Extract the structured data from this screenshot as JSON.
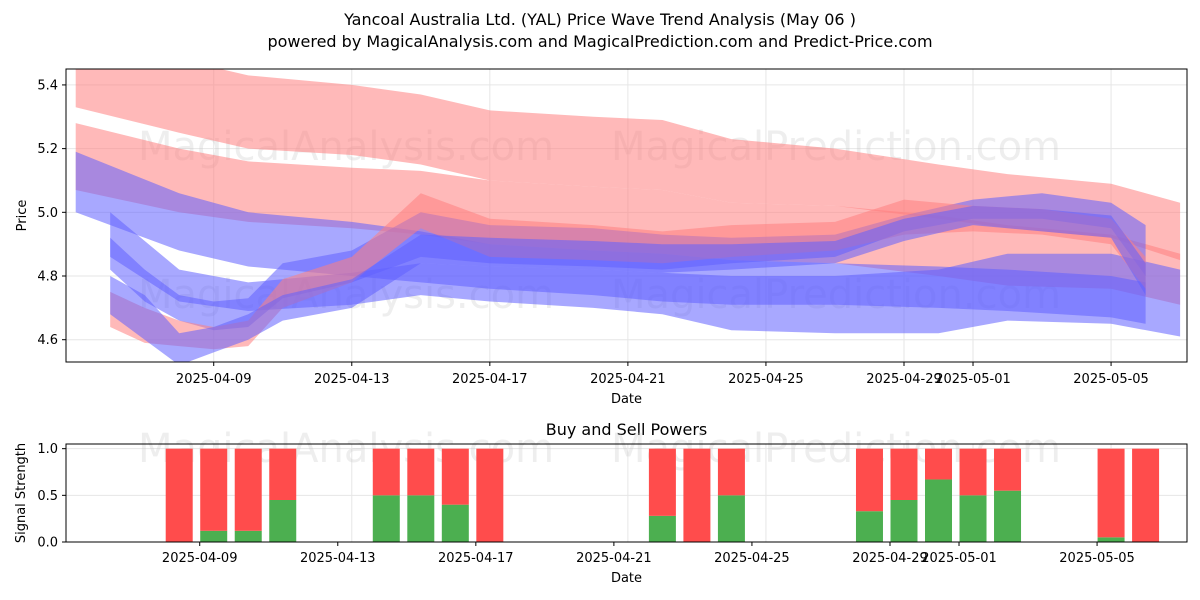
{
  "header": {
    "title": "Yancoal Australia Ltd. (YAL) Price Wave Trend Analysis (May 06 )",
    "subtitle": "powered by MagicalAnalysis.com and MagicalPrediction.com and Predict-Price.com"
  },
  "watermarks": [
    "MagicalAnalysis.com",
    "MagicalPrediction.com"
  ],
  "colors": {
    "sell": "#ff4c4c",
    "buy": "#4caf50",
    "bear_band": "#ff8080",
    "bull_band": "#6060ff"
  },
  "chart_data": [
    {
      "type": "area",
      "title": "",
      "xlabel": "Date",
      "ylabel": "Price",
      "xlim": [
        "2025-04-05",
        "2025-05-07"
      ],
      "ylim": [
        4.53,
        5.45
      ],
      "x_ticks": [
        "2025-04-09",
        "2025-04-13",
        "2025-04-17",
        "2025-04-21",
        "2025-04-25",
        "2025-04-29",
        "2025-05-01",
        "2025-05-05"
      ],
      "y_ticks": [
        4.6,
        4.8,
        5.0,
        5.2,
        5.4
      ],
      "grid": true,
      "series": [
        {
          "color": "red",
          "x": [
            "2025-04-05",
            "2025-04-08",
            "2025-04-10",
            "2025-04-13",
            "2025-04-15",
            "2025-04-17",
            "2025-04-20",
            "2025-04-22",
            "2025-04-24",
            "2025-04-27",
            "2025-04-30",
            "2025-05-02",
            "2025-05-05",
            "2025-05-07"
          ],
          "upper": [
            5.52,
            5.48,
            5.43,
            5.4,
            5.37,
            5.32,
            5.3,
            5.29,
            5.23,
            5.2,
            5.15,
            5.12,
            5.09,
            5.03
          ],
          "lower": [
            5.33,
            5.25,
            5.2,
            5.18,
            5.15,
            5.1,
            5.08,
            5.07,
            5.03,
            5.02,
            4.98,
            4.95,
            4.92,
            4.85
          ]
        },
        {
          "color": "red",
          "x": [
            "2025-04-05",
            "2025-04-08",
            "2025-04-10",
            "2025-04-13",
            "2025-04-15",
            "2025-04-17",
            "2025-04-20",
            "2025-04-22",
            "2025-04-24",
            "2025-04-27",
            "2025-04-30",
            "2025-05-02",
            "2025-05-05",
            "2025-05-07"
          ],
          "upper": [
            5.28,
            5.2,
            5.16,
            5.14,
            5.13,
            5.1,
            5.08,
            5.07,
            5.03,
            5.02,
            4.99,
            4.96,
            4.93,
            4.87
          ],
          "lower": [
            5.07,
            5.0,
            4.97,
            4.95,
            4.93,
            4.9,
            4.88,
            4.87,
            4.85,
            4.84,
            4.8,
            4.77,
            4.76,
            4.71
          ]
        },
        {
          "color": "blue",
          "x": [
            "2025-04-05",
            "2025-04-08",
            "2025-04-10",
            "2025-04-13",
            "2025-04-15",
            "2025-04-17",
            "2025-04-20",
            "2025-04-22",
            "2025-04-24",
            "2025-04-27",
            "2025-04-30",
            "2025-05-02",
            "2025-05-05",
            "2025-05-06"
          ],
          "upper": [
            5.19,
            5.06,
            5.0,
            4.97,
            4.94,
            4.9,
            4.88,
            4.87,
            4.85,
            4.84,
            4.83,
            4.82,
            4.8,
            4.78
          ],
          "lower": [
            5.0,
            4.88,
            4.83,
            4.8,
            4.78,
            4.76,
            4.74,
            4.72,
            4.71,
            4.71,
            4.7,
            4.69,
            4.67,
            4.65
          ]
        },
        {
          "color": "blue",
          "x": [
            "2025-04-06",
            "2025-04-08",
            "2025-04-10",
            "2025-04-13",
            "2025-04-15",
            "2025-04-17",
            "2025-04-20",
            "2025-04-22",
            "2025-04-24",
            "2025-04-27",
            "2025-04-30",
            "2025-05-02",
            "2025-05-05",
            "2025-05-07"
          ],
          "upper": [
            5.0,
            4.82,
            4.78,
            4.81,
            4.84,
            4.83,
            4.82,
            4.81,
            4.8,
            4.8,
            4.82,
            4.87,
            4.87,
            4.82
          ],
          "lower": [
            4.86,
            4.72,
            4.69,
            4.71,
            4.74,
            4.72,
            4.7,
            4.68,
            4.63,
            4.62,
            4.62,
            4.66,
            4.65,
            4.61
          ]
        },
        {
          "color": "blue",
          "x": [
            "2025-04-06",
            "2025-04-07",
            "2025-04-08",
            "2025-04-09",
            "2025-04-10",
            "2025-04-11",
            "2025-04-13",
            "2025-04-15",
            "2025-04-17",
            "2025-04-20",
            "2025-04-22",
            "2025-04-24",
            "2025-04-27",
            "2025-04-29",
            "2025-05-01",
            "2025-05-03",
            "2025-05-05",
            "2025-05-06"
          ],
          "upper": [
            4.92,
            4.82,
            4.74,
            4.72,
            4.73,
            4.84,
            4.88,
            5.0,
            4.96,
            4.95,
            4.93,
            4.92,
            4.93,
            4.99,
            5.04,
            5.06,
            5.03,
            4.96
          ],
          "lower": [
            4.82,
            4.72,
            4.66,
            4.63,
            4.64,
            4.73,
            4.78,
            4.86,
            4.84,
            4.83,
            4.82,
            4.84,
            4.86,
            4.94,
            4.98,
            4.98,
            4.95,
            4.8
          ]
        },
        {
          "color": "red",
          "x": [
            "2025-04-06",
            "2025-04-07",
            "2025-04-08",
            "2025-04-09",
            "2025-04-10",
            "2025-04-11",
            "2025-04-13",
            "2025-04-15",
            "2025-04-17",
            "2025-04-20",
            "2025-04-22",
            "2025-04-24",
            "2025-04-27",
            "2025-04-29",
            "2025-05-01",
            "2025-05-03",
            "2025-05-05",
            "2025-05-06"
          ],
          "upper": [
            4.75,
            4.7,
            4.66,
            4.64,
            4.66,
            4.79,
            4.86,
            5.06,
            4.98,
            4.96,
            4.94,
            4.96,
            4.97,
            5.04,
            5.02,
            5.01,
            4.98,
            4.86
          ],
          "lower": [
            4.64,
            4.59,
            4.58,
            4.57,
            4.58,
            4.7,
            4.78,
            4.95,
            4.86,
            4.85,
            4.84,
            4.86,
            4.88,
            4.93,
            4.94,
            4.93,
            4.9,
            4.76
          ]
        },
        {
          "color": "blue",
          "x": [
            "2025-04-06",
            "2025-04-07",
            "2025-04-08",
            "2025-04-09",
            "2025-04-10",
            "2025-04-11",
            "2025-04-13",
            "2025-04-15",
            "2025-04-17",
            "2025-04-20",
            "2025-04-22",
            "2025-04-24",
            "2025-04-27",
            "2025-04-29",
            "2025-05-01",
            "2025-05-03",
            "2025-05-05",
            "2025-05-06"
          ],
          "upper": [
            4.8,
            4.74,
            4.62,
            4.64,
            4.68,
            4.74,
            4.79,
            4.93,
            4.92,
            4.91,
            4.9,
            4.9,
            4.91,
            4.98,
            5.02,
            5.01,
            4.99,
            4.84
          ],
          "lower": [
            4.68,
            4.6,
            4.52,
            4.56,
            4.6,
            4.66,
            4.7,
            4.84,
            4.83,
            4.82,
            4.81,
            4.82,
            4.84,
            4.91,
            4.96,
            4.94,
            4.92,
            4.74
          ]
        }
      ]
    },
    {
      "type": "bar",
      "title": "Buy and Sell Powers",
      "xlabel": "Date",
      "ylabel": "Signal Strength",
      "ylim": [
        0,
        1.05
      ],
      "y_ticks": [
        "0.0",
        "0.5",
        "1.0"
      ],
      "x_ticks": [
        "2025-04-09",
        "2025-04-13",
        "2025-04-17",
        "2025-04-21",
        "2025-04-25",
        "2025-04-29",
        "2025-05-01",
        "2025-05-05"
      ],
      "grid": true,
      "categories": [
        "2025-04-08",
        "2025-04-09",
        "2025-04-10",
        "2025-04-11",
        "2025-04-14",
        "2025-04-15",
        "2025-04-16",
        "2025-04-17",
        "2025-04-22",
        "2025-04-23",
        "2025-04-24",
        "2025-04-28",
        "2025-04-29",
        "2025-04-30",
        "2025-05-01",
        "2025-05-02",
        "2025-05-05",
        "2025-05-06"
      ],
      "series": [
        {
          "name": "Buy",
          "values": [
            0.0,
            0.12,
            0.12,
            0.45,
            0.5,
            0.5,
            0.4,
            0.0,
            0.28,
            0.0,
            0.5,
            0.33,
            0.45,
            0.67,
            0.5,
            0.55,
            0.05,
            0.0
          ]
        },
        {
          "name": "Sell",
          "values": [
            1.0,
            0.88,
            0.88,
            0.55,
            0.5,
            0.5,
            0.6,
            1.0,
            0.72,
            1.0,
            0.5,
            0.67,
            0.55,
            0.33,
            0.5,
            0.45,
            0.95,
            1.0
          ]
        }
      ]
    }
  ]
}
